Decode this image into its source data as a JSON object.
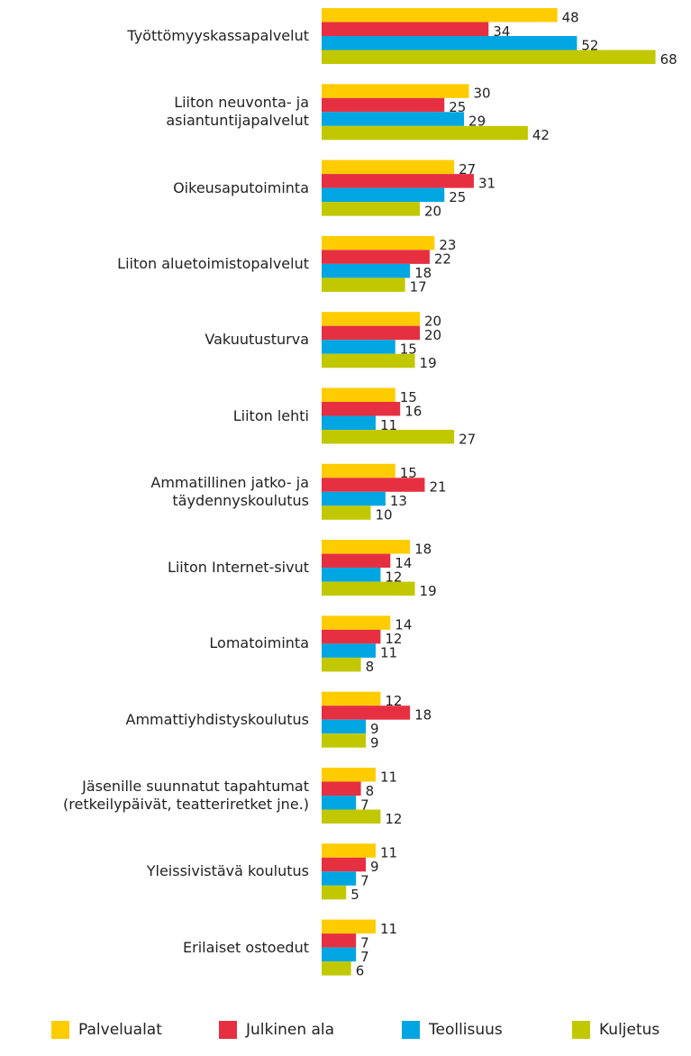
{
  "chart_data": {
    "type": "bar",
    "orientation": "horizontal",
    "categories": [
      "Työttömyyskassapalvelut",
      "Liiton neuvonta- ja\nasiantuntijapalvelut",
      "Oikeusaputoiminta",
      "Liiton aluetoimistopalvelut",
      "Vakuutusturva",
      "Liiton lehti",
      "Ammatillinen jatko- ja\ntäydennyskoulutus",
      "Liiton Internet-sivut",
      "Lomatoiminta",
      "Ammattiyhdistyskoulutus",
      "Jäsenille suunnatut tapahtumat\n(retkeilypäivät, teatteriretket jne.)",
      "Yleissivistävä koulutus",
      "Erilaiset ostoedut"
    ],
    "series": [
      {
        "name": "Palvelualat",
        "color": "#ffcc00",
        "values": [
          48,
          30,
          27,
          23,
          20,
          15,
          15,
          18,
          14,
          12,
          11,
          11,
          11
        ]
      },
      {
        "name": "Julkinen ala",
        "color": "#e63042",
        "values": [
          34,
          25,
          31,
          22,
          20,
          16,
          21,
          14,
          12,
          18,
          8,
          9,
          7
        ]
      },
      {
        "name": "Teollisuus",
        "color": "#00a6e2",
        "values": [
          52,
          29,
          25,
          18,
          15,
          11,
          13,
          12,
          11,
          9,
          7,
          7,
          7
        ]
      },
      {
        "name": "Kuljetus",
        "color": "#c2c800",
        "values": [
          68,
          42,
          20,
          17,
          19,
          27,
          10,
          19,
          8,
          9,
          12,
          5,
          6
        ]
      }
    ],
    "legend": "bottom"
  }
}
